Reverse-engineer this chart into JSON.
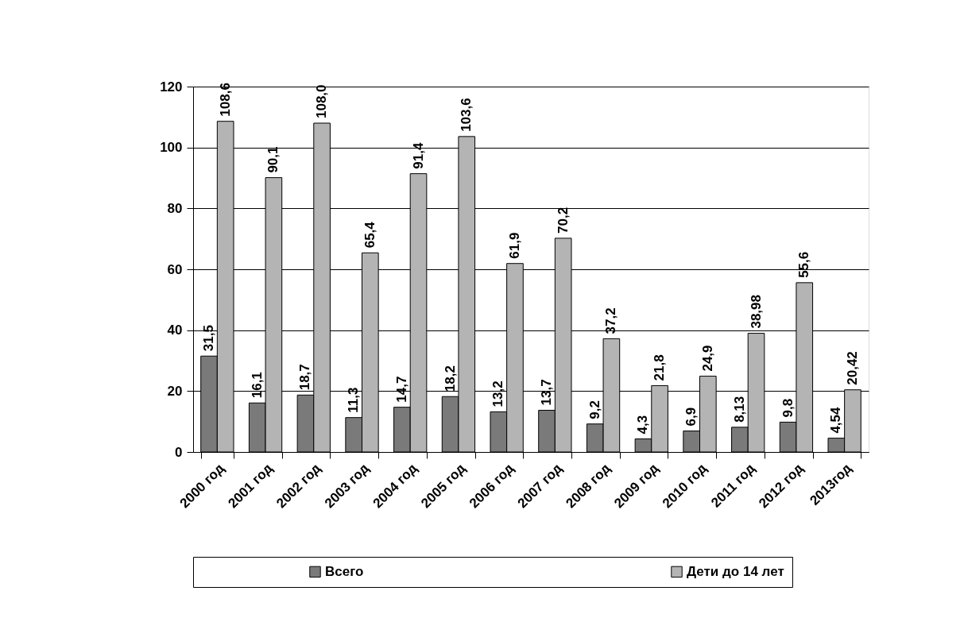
{
  "chart_data": {
    "type": "bar",
    "categories": [
      "2000 год",
      "2001 год",
      "2002 год",
      "2003 год",
      "2004 год",
      "2005 год",
      "2006 год",
      "2007 год",
      "2008 год",
      "2009 год",
      "2010 год",
      "2011 год",
      "2012 год",
      "2013год"
    ],
    "series": [
      {
        "name": "Всего",
        "color": "#7a7a7a",
        "values": [
          31.5,
          16.1,
          18.7,
          11.3,
          14.7,
          18.2,
          13.2,
          13.7,
          9.2,
          4.3,
          6.9,
          8.13,
          9.8,
          4.54
        ],
        "value_labels": [
          "31,5",
          "16,1",
          "18,7",
          "11,3",
          "14,7",
          "18,2",
          "13,2",
          "13,7",
          "9,2",
          "4,3",
          "6,9",
          "8,13",
          "9,8",
          "4,54"
        ]
      },
      {
        "name": "Дети до 14 лет",
        "color": "#b4b4b4",
        "values": [
          108.6,
          90.1,
          108.0,
          65.4,
          91.4,
          103.6,
          61.9,
          70.2,
          37.2,
          21.8,
          24.9,
          38.98,
          55.6,
          20.42
        ],
        "value_labels": [
          "108,6",
          "90,1",
          "108,0",
          "65,4",
          "91,4",
          "103,6",
          "61,9",
          "70,2",
          "37,2",
          "21,8",
          "24,9",
          "38,98",
          "55,6",
          "20,42"
        ]
      }
    ],
    "ylim": [
      0,
      120
    ],
    "yticks": [
      0,
      20,
      40,
      60,
      80,
      100,
      120
    ],
    "grid": "y",
    "legend": "bottom"
  }
}
